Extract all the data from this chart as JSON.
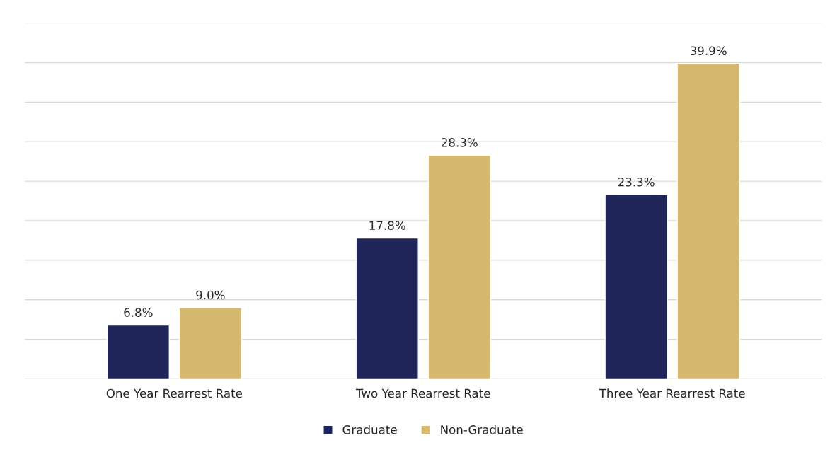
{
  "chart_data": {
    "type": "bar",
    "categories": [
      "One Year Rearrest Rate",
      "Two Year Rearrest Rate",
      "Three Year Rearrest Rate"
    ],
    "series": [
      {
        "name": "Graduate",
        "color": "#1f2459",
        "values": [
          6.8,
          17.8,
          23.3
        ],
        "value_labels": [
          "6.8%",
          "17.8%",
          "23.3%"
        ]
      },
      {
        "name": "Non-Graduate",
        "color": "#d6b86e",
        "values": [
          9.0,
          28.3,
          39.9
        ],
        "value_labels": [
          "9.0%",
          "28.3%",
          "39.9%"
        ]
      }
    ],
    "ylim": [
      0,
      45
    ],
    "yticks": [
      {
        "value": 0,
        "label": null
      },
      {
        "value": 5,
        "label": null
      },
      {
        "value": 10,
        "label": null
      },
      {
        "value": 15,
        "label": null
      },
      {
        "value": 20,
        "label": null
      },
      {
        "value": 25,
        "label": null
      },
      {
        "value": 30,
        "label": null
      },
      {
        "value": 35,
        "label": null
      },
      {
        "value": 40,
        "label": null
      },
      {
        "value": 45,
        "label": null
      }
    ],
    "grid": "y",
    "legend": "bottom",
    "tick_labels": "x"
  }
}
